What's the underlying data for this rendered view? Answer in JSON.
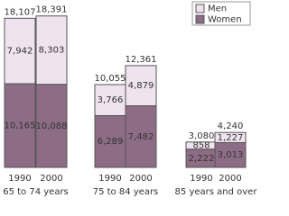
{
  "chart_data": {
    "type": "stacked-bar",
    "groups": [
      "65 to 74 years",
      "75 to 84 years",
      "85 years and over"
    ],
    "categories": [
      "1990",
      "2000",
      "1990",
      "2000",
      "1990",
      "2000"
    ],
    "series": [
      {
        "name": "Women",
        "color": "#8d6d85",
        "values": [
          10165,
          10088,
          6289,
          7482,
          2222,
          3013
        ],
        "value_labels": [
          "10,165",
          "10,088",
          "6,289",
          "7,482",
          "2,222",
          "3,013"
        ]
      },
      {
        "name": "Men",
        "color": "#efe3f0",
        "values": [
          7942,
          8303,
          3766,
          4879,
          858,
          1227
        ],
        "value_labels": [
          "7,942",
          "8,303",
          "3,766",
          "4,879",
          "858",
          "1,227"
        ]
      }
    ],
    "totals": [
      18107,
      18391,
      10055,
      12361,
      3080,
      4240
    ],
    "total_labels": [
      "18,107",
      "18,391",
      "10,055",
      "12,361",
      "3,080",
      "4,240"
    ],
    "ylim": [
      0,
      20000
    ],
    "legend": "top-right"
  }
}
